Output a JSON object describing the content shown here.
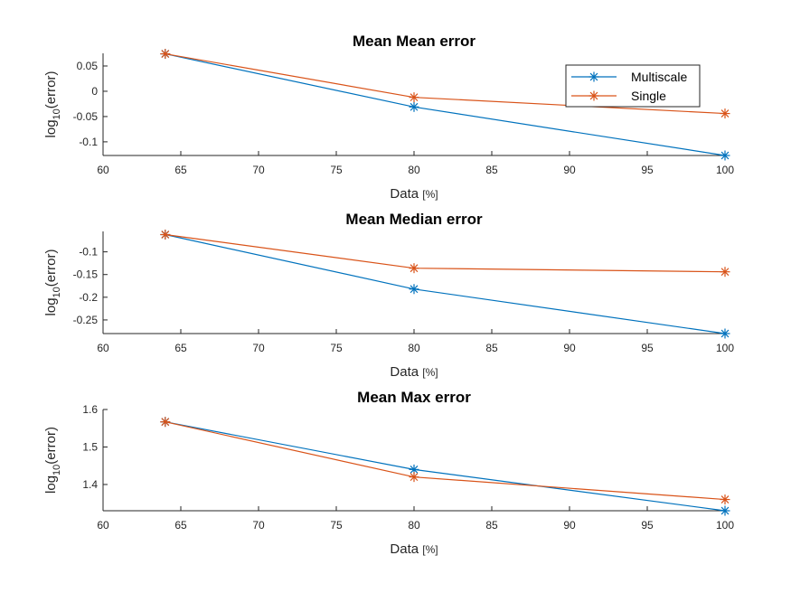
{
  "colors": {
    "Multiscale": "#0072BD",
    "Single": "#D95319",
    "axis": "#262626"
  },
  "chart_data": [
    {
      "type": "line",
      "title": "Mean Mean error",
      "xlabel": "Data",
      "xlabel_unit": "[%]",
      "ylabel_prefix": "log",
      "ylabel_sub": "10",
      "ylabel_suffix": "(error)",
      "xlim": [
        60,
        100
      ],
      "ylim": [
        -0.127,
        0.075
      ],
      "xticks": [
        60,
        65,
        70,
        75,
        80,
        85,
        90,
        95,
        100
      ],
      "xtick_labels": [
        "60",
        "65",
        "70",
        "75",
        "80",
        "85",
        "90",
        "95",
        "100"
      ],
      "yticks": [
        -0.1,
        -0.05,
        0,
        0.05
      ],
      "ytick_labels": [
        "-0.1",
        "-0.05",
        "0",
        "0.05"
      ],
      "x": [
        64,
        80,
        100
      ],
      "series": [
        {
          "name": "Multiscale",
          "values": [
            0.074,
            -0.031,
            -0.127
          ]
        },
        {
          "name": "Single",
          "values": [
            0.074,
            -0.012,
            -0.044
          ]
        }
      ],
      "legend": "top-right",
      "grid": false
    },
    {
      "type": "line",
      "title": "Mean Median error",
      "xlabel": "Data",
      "xlabel_unit": "[%]",
      "ylabel_prefix": "log",
      "ylabel_sub": "10",
      "ylabel_suffix": "(error)",
      "xlim": [
        60,
        100
      ],
      "ylim": [
        -0.28,
        -0.055
      ],
      "xticks": [
        60,
        65,
        70,
        75,
        80,
        85,
        90,
        95,
        100
      ],
      "xtick_labels": [
        "60",
        "65",
        "70",
        "75",
        "80",
        "85",
        "90",
        "95",
        "100"
      ],
      "yticks": [
        -0.25,
        -0.2,
        -0.15,
        -0.1
      ],
      "ytick_labels": [
        "-0.25",
        "-0.2",
        "-0.15",
        "-0.1"
      ],
      "x": [
        64,
        80,
        100
      ],
      "series": [
        {
          "name": "Multiscale",
          "values": [
            -0.062,
            -0.182,
            -0.28
          ]
        },
        {
          "name": "Single",
          "values": [
            -0.062,
            -0.136,
            -0.144
          ]
        }
      ],
      "grid": false
    },
    {
      "type": "line",
      "title": "Mean Max error",
      "xlabel": "Data",
      "xlabel_unit": "[%]",
      "ylabel_prefix": "log",
      "ylabel_sub": "10",
      "ylabel_suffix": "(error)",
      "xlim": [
        60,
        100
      ],
      "ylim": [
        1.33,
        1.6
      ],
      "xticks": [
        60,
        65,
        70,
        75,
        80,
        85,
        90,
        95,
        100
      ],
      "xtick_labels": [
        "60",
        "65",
        "70",
        "75",
        "80",
        "85",
        "90",
        "95",
        "100"
      ],
      "yticks": [
        1.4,
        1.5,
        1.6
      ],
      "ytick_labels": [
        "1.4",
        "1.5",
        "1.6"
      ],
      "x": [
        64,
        80,
        100
      ],
      "series": [
        {
          "name": "Multiscale",
          "values": [
            1.567,
            1.44,
            1.33
          ]
        },
        {
          "name": "Single",
          "values": [
            1.567,
            1.42,
            1.36
          ]
        }
      ],
      "grid": false
    }
  ]
}
